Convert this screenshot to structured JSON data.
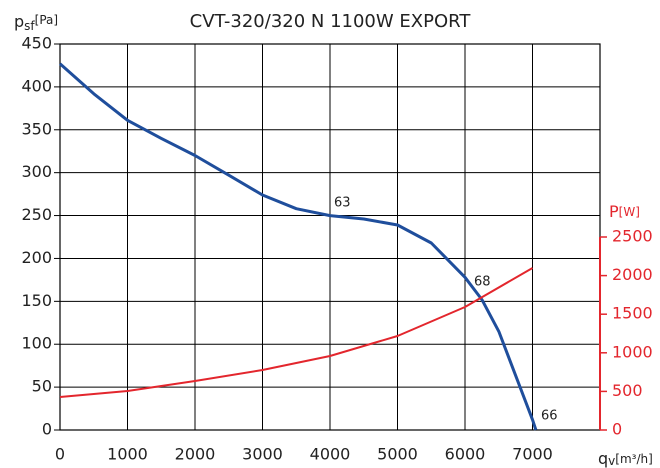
{
  "chart_data": {
    "type": "line",
    "title": "CVT-320/320 N 1100W EXPORT",
    "y_label": {
      "main": "p",
      "sub": "sf",
      "unit": "[Pa]"
    },
    "y2_label": {
      "main": "P",
      "unit": "[W]"
    },
    "x_label": {
      "main": "q",
      "sub": "v",
      "unit": "[m³/h]"
    },
    "xlim": [
      0,
      8000
    ],
    "xticks": [
      0,
      1000,
      2000,
      3000,
      4000,
      5000,
      6000,
      7000
    ],
    "ylim": [
      0,
      450
    ],
    "yticks": [
      0,
      50,
      100,
      150,
      200,
      250,
      300,
      350,
      400,
      450
    ],
    "y2lim": [
      0,
      5000
    ],
    "y2ticks": [
      0,
      500,
      1000,
      1500,
      2000,
      2500
    ],
    "grid": true,
    "y2_color": "#e3262d",
    "series": [
      {
        "color": "#1f4e9c",
        "x": [
          0,
          500,
          1000,
          1500,
          2000,
          2500,
          3000,
          3500,
          4000,
          4500,
          5000,
          5500,
          6000,
          6250,
          6500,
          7000,
          7050
        ],
        "values": [
          427,
          392,
          361,
          340,
          320,
          297,
          274,
          258,
          250,
          246,
          239,
          218,
          178,
          152,
          115,
          12,
          0
        ]
      },
      {
        "color": "#e3262d",
        "axis": "y2",
        "x": [
          0,
          1000,
          2000,
          3000,
          4000,
          5000,
          6000,
          7000
        ],
        "values": [
          427,
          505,
          635,
          777,
          958,
          1218,
          1593,
          2098
        ]
      }
    ],
    "annotations": [
      "63",
      "68",
      "66"
    ]
  }
}
